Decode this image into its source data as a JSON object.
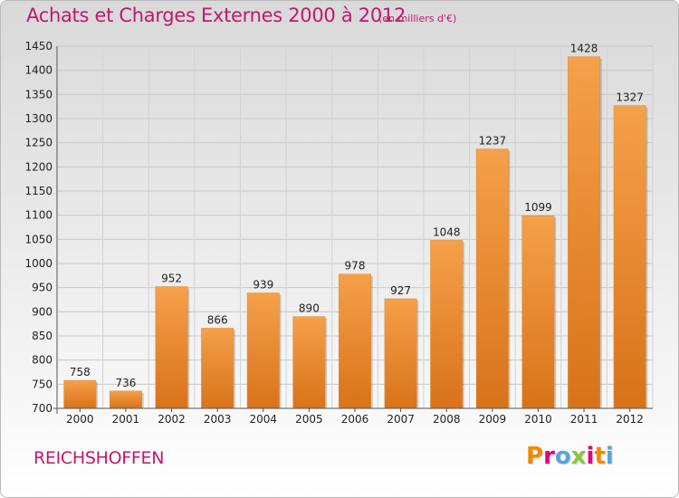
{
  "header": {
    "title": "Achats et Charges Externes 2000 à 2012",
    "unit": "(en milliers d'€)"
  },
  "footer": {
    "commune": "REICHSHOFFEN",
    "logo_letters": [
      "P",
      "r",
      "o",
      "x",
      "i",
      "t",
      "i"
    ],
    "logo_colors": [
      "#f08a00",
      "#e3007d",
      "#56a7d8",
      "#8cc63f",
      "#e3007d",
      "#f08a00",
      "#56a7d8"
    ],
    "logo_text": "Proxiti"
  },
  "chart_data": {
    "type": "bar",
    "title": "Achats et Charges Externes 2000 à 2012",
    "subtitle": "(en milliers d'€)",
    "xlabel": "",
    "ylabel": "",
    "categories": [
      "2000",
      "2001",
      "2002",
      "2003",
      "2004",
      "2005",
      "2006",
      "2007",
      "2008",
      "2009",
      "2010",
      "2011",
      "2012"
    ],
    "values": [
      758,
      736,
      952,
      866,
      939,
      890,
      978,
      927,
      1048,
      1237,
      1099,
      1428,
      1327
    ],
    "ylim": [
      700,
      1450
    ],
    "yticks": [
      700,
      750,
      800,
      850,
      900,
      950,
      1000,
      1050,
      1100,
      1150,
      1200,
      1250,
      1300,
      1350,
      1400,
      1450
    ],
    "grid": true,
    "bar_color": "#f5a04a",
    "bar_color_dark": "#d8731a"
  }
}
